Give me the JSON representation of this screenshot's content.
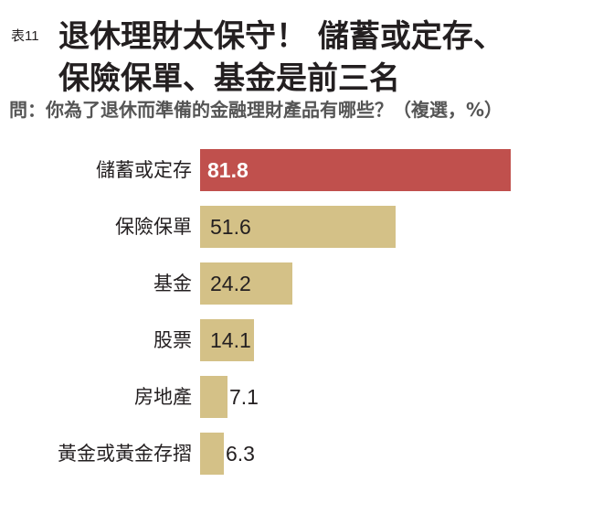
{
  "header": {
    "table_no": "表11",
    "title_line1": "退休理財太保守！ 儲蓄或定存、",
    "title_line2": "保險保單、基金是前三名",
    "question": "問：你為了退休而準備的金融理財產品有哪些？（複選，%）"
  },
  "colors": {
    "highlight": "#c0504d",
    "bar": "#d4c187",
    "text": "#231f20",
    "question": "#555555"
  },
  "chart_data": {
    "type": "bar",
    "orientation": "horizontal",
    "title": "退休理財太保守！ 儲蓄或定存、保險保單、基金是前三名",
    "subtitle": "問：你為了退休而準備的金融理財產品有哪些？（複選，%）",
    "xlabel": "",
    "ylabel": "",
    "unit": "%",
    "grid": false,
    "legend": "none",
    "categories": [
      "儲蓄或定存",
      "保險保單",
      "基金",
      "股票",
      "房地產",
      "黃金或黃金存摺"
    ],
    "values": [
      81.8,
      51.6,
      24.2,
      14.1,
      7.1,
      6.3
    ],
    "labels": [
      "81.8",
      "51.6",
      "24.2",
      "14.1",
      "7.1",
      "6.3"
    ],
    "highlight_index": 0
  }
}
